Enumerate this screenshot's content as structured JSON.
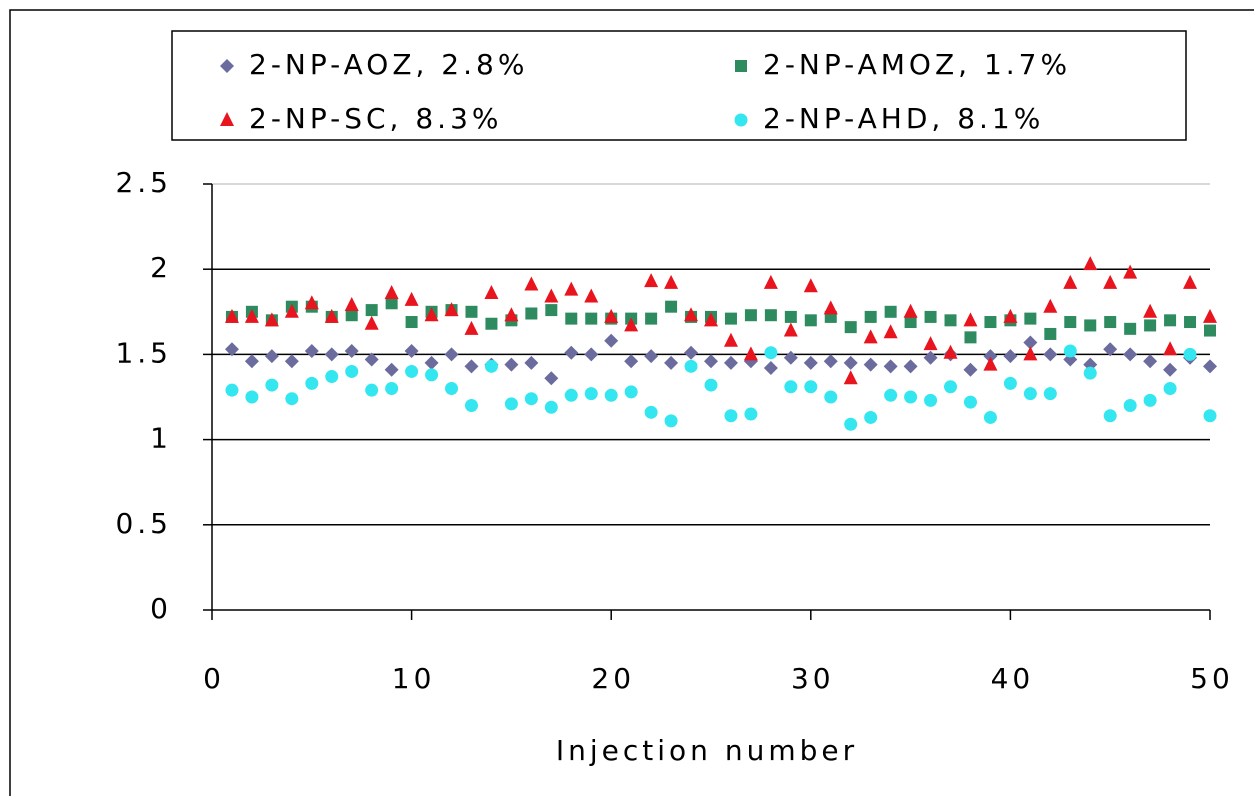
{
  "chart_data": {
    "type": "scatter",
    "xlabel": "Injection number",
    "x": [
      1,
      2,
      3,
      4,
      5,
      6,
      7,
      8,
      9,
      10,
      11,
      12,
      13,
      14,
      15,
      16,
      17,
      18,
      19,
      20,
      21,
      22,
      23,
      24,
      25,
      26,
      27,
      28,
      29,
      30,
      31,
      32,
      33,
      34,
      35,
      36,
      37,
      38,
      39,
      40,
      41,
      42,
      43,
      44,
      45,
      46,
      47,
      48,
      49,
      50
    ],
    "series": [
      {
        "name": "2-NP-AOZ, 2.8%",
        "color": "#6b6b9e",
        "marker": "diamond",
        "values": [
          1.53,
          1.46,
          1.49,
          1.46,
          1.52,
          1.5,
          1.52,
          1.47,
          1.41,
          1.52,
          1.45,
          1.5,
          1.43,
          1.44,
          1.44,
          1.45,
          1.36,
          1.51,
          1.5,
          1.58,
          1.46,
          1.49,
          1.45,
          1.51,
          1.46,
          1.45,
          1.46,
          1.42,
          1.48,
          1.45,
          1.46,
          1.45,
          1.44,
          1.43,
          1.43,
          1.48,
          1.5,
          1.41,
          1.49,
          1.49,
          1.57,
          1.5,
          1.47,
          1.44,
          1.53,
          1.5,
          1.46,
          1.41,
          1.48,
          1.43
        ]
      },
      {
        "name": "2-NP-AMOZ, 1.7%",
        "color": "#2e8b5f",
        "marker": "square",
        "values": [
          1.72,
          1.75,
          1.7,
          1.78,
          1.78,
          1.72,
          1.73,
          1.76,
          1.8,
          1.69,
          1.75,
          1.76,
          1.75,
          1.68,
          1.7,
          1.74,
          1.76,
          1.71,
          1.71,
          1.71,
          1.71,
          1.71,
          1.78,
          1.72,
          1.72,
          1.71,
          1.73,
          1.73,
          1.72,
          1.7,
          1.72,
          1.66,
          1.72,
          1.75,
          1.69,
          1.72,
          1.7,
          1.6,
          1.69,
          1.7,
          1.71,
          1.62,
          1.69,
          1.67,
          1.69,
          1.65,
          1.67,
          1.7,
          1.69,
          1.64
        ]
      },
      {
        "name": "2-NP-SC, 8.3%",
        "color": "#e8141e",
        "marker": "triangle",
        "values": [
          1.72,
          1.72,
          1.7,
          1.75,
          1.8,
          1.72,
          1.79,
          1.68,
          1.86,
          1.82,
          1.73,
          1.76,
          1.65,
          1.86,
          1.73,
          1.91,
          1.84,
          1.88,
          1.84,
          1.72,
          1.67,
          1.93,
          1.92,
          1.73,
          1.7,
          1.58,
          1.5,
          1.92,
          1.64,
          1.9,
          1.77,
          1.36,
          1.6,
          1.63,
          1.75,
          1.56,
          1.51,
          1.7,
          1.44,
          1.72,
          1.5,
          1.78,
          1.92,
          2.03,
          1.92,
          1.98,
          1.75,
          1.53,
          1.92,
          1.72
        ]
      },
      {
        "name": "2-NP-AHD, 8.1%",
        "color": "#33e6f0",
        "marker": "circle",
        "values": [
          1.29,
          1.25,
          1.32,
          1.24,
          1.33,
          1.37,
          1.4,
          1.29,
          1.3,
          1.4,
          1.38,
          1.3,
          1.2,
          1.43,
          1.21,
          1.24,
          1.19,
          1.26,
          1.27,
          1.26,
          1.28,
          1.16,
          1.11,
          1.43,
          1.32,
          1.14,
          1.15,
          1.51,
          1.31,
          1.31,
          1.25,
          1.09,
          1.13,
          1.26,
          1.25,
          1.23,
          1.31,
          1.22,
          1.13,
          1.33,
          1.27,
          1.27,
          1.52,
          1.39,
          1.14,
          1.2,
          1.23,
          1.3,
          1.5,
          1.14
        ]
      }
    ],
    "xlim": [
      0,
      50
    ],
    "xticks": [
      0,
      10,
      20,
      30,
      40,
      50
    ],
    "ylim": [
      0,
      2.5
    ],
    "yticks": [
      0,
      0.5,
      1,
      1.5,
      2,
      2.5
    ],
    "grid": true
  }
}
